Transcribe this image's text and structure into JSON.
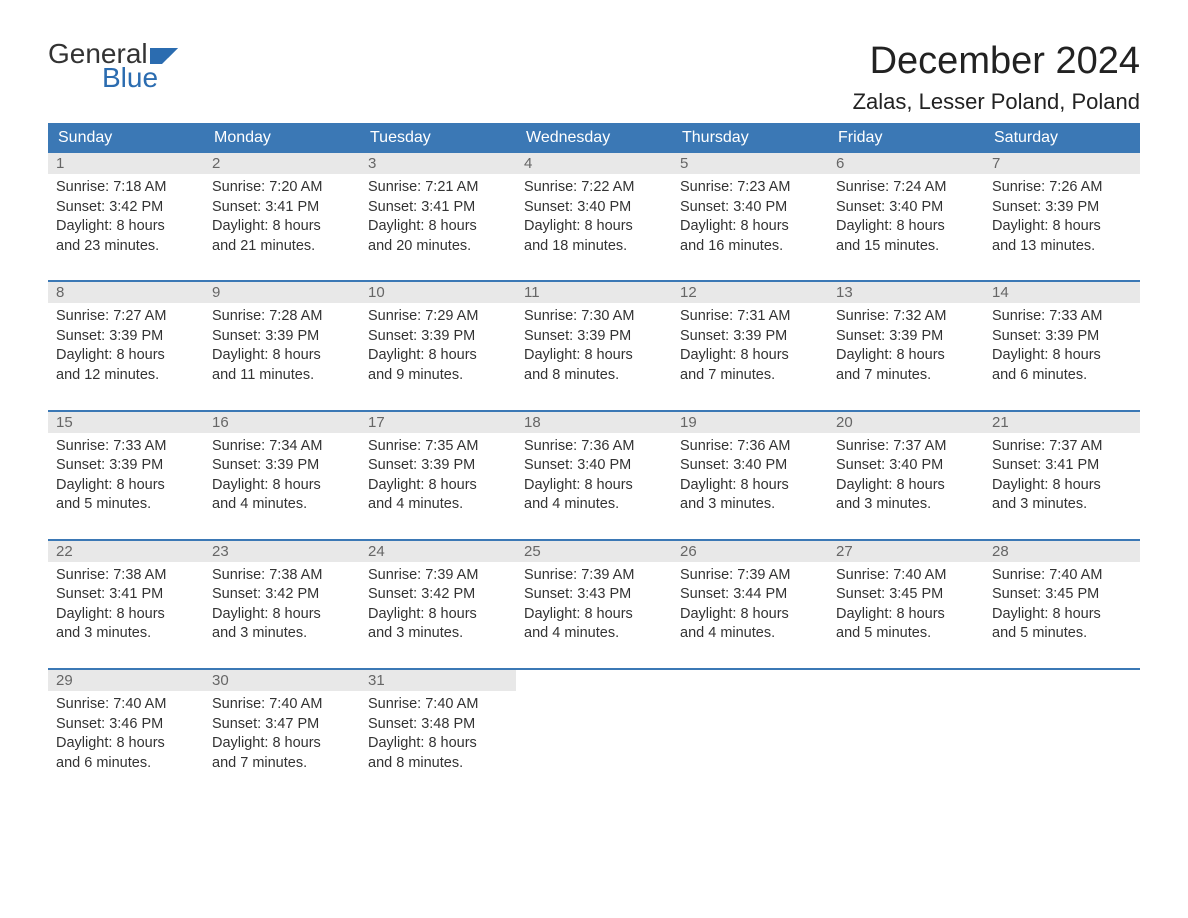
{
  "logo": {
    "word1": "General",
    "word2": "Blue",
    "brand_color": "#2b6cb0"
  },
  "title": "December 2024",
  "location": "Zalas, Lesser Poland, Poland",
  "colors": {
    "header_bg": "#3b78b5",
    "header_text": "#ffffff",
    "daynum_bg": "#e8e8e8",
    "daynum_text": "#666666",
    "body_text": "#333333",
    "rule": "#3b78b5",
    "page_bg": "#ffffff"
  },
  "day_headers": [
    "Sunday",
    "Monday",
    "Tuesday",
    "Wednesday",
    "Thursday",
    "Friday",
    "Saturday"
  ],
  "weeks": [
    [
      {
        "n": "1",
        "sunrise": "Sunrise: 7:18 AM",
        "sunset": "Sunset: 3:42 PM",
        "d1": "Daylight: 8 hours",
        "d2": "and 23 minutes."
      },
      {
        "n": "2",
        "sunrise": "Sunrise: 7:20 AM",
        "sunset": "Sunset: 3:41 PM",
        "d1": "Daylight: 8 hours",
        "d2": "and 21 minutes."
      },
      {
        "n": "3",
        "sunrise": "Sunrise: 7:21 AM",
        "sunset": "Sunset: 3:41 PM",
        "d1": "Daylight: 8 hours",
        "d2": "and 20 minutes."
      },
      {
        "n": "4",
        "sunrise": "Sunrise: 7:22 AM",
        "sunset": "Sunset: 3:40 PM",
        "d1": "Daylight: 8 hours",
        "d2": "and 18 minutes."
      },
      {
        "n": "5",
        "sunrise": "Sunrise: 7:23 AM",
        "sunset": "Sunset: 3:40 PM",
        "d1": "Daylight: 8 hours",
        "d2": "and 16 minutes."
      },
      {
        "n": "6",
        "sunrise": "Sunrise: 7:24 AM",
        "sunset": "Sunset: 3:40 PM",
        "d1": "Daylight: 8 hours",
        "d2": "and 15 minutes."
      },
      {
        "n": "7",
        "sunrise": "Sunrise: 7:26 AM",
        "sunset": "Sunset: 3:39 PM",
        "d1": "Daylight: 8 hours",
        "d2": "and 13 minutes."
      }
    ],
    [
      {
        "n": "8",
        "sunrise": "Sunrise: 7:27 AM",
        "sunset": "Sunset: 3:39 PM",
        "d1": "Daylight: 8 hours",
        "d2": "and 12 minutes."
      },
      {
        "n": "9",
        "sunrise": "Sunrise: 7:28 AM",
        "sunset": "Sunset: 3:39 PM",
        "d1": "Daylight: 8 hours",
        "d2": "and 11 minutes."
      },
      {
        "n": "10",
        "sunrise": "Sunrise: 7:29 AM",
        "sunset": "Sunset: 3:39 PM",
        "d1": "Daylight: 8 hours",
        "d2": "and 9 minutes."
      },
      {
        "n": "11",
        "sunrise": "Sunrise: 7:30 AM",
        "sunset": "Sunset: 3:39 PM",
        "d1": "Daylight: 8 hours",
        "d2": "and 8 minutes."
      },
      {
        "n": "12",
        "sunrise": "Sunrise: 7:31 AM",
        "sunset": "Sunset: 3:39 PM",
        "d1": "Daylight: 8 hours",
        "d2": "and 7 minutes."
      },
      {
        "n": "13",
        "sunrise": "Sunrise: 7:32 AM",
        "sunset": "Sunset: 3:39 PM",
        "d1": "Daylight: 8 hours",
        "d2": "and 7 minutes."
      },
      {
        "n": "14",
        "sunrise": "Sunrise: 7:33 AM",
        "sunset": "Sunset: 3:39 PM",
        "d1": "Daylight: 8 hours",
        "d2": "and 6 minutes."
      }
    ],
    [
      {
        "n": "15",
        "sunrise": "Sunrise: 7:33 AM",
        "sunset": "Sunset: 3:39 PM",
        "d1": "Daylight: 8 hours",
        "d2": "and 5 minutes."
      },
      {
        "n": "16",
        "sunrise": "Sunrise: 7:34 AM",
        "sunset": "Sunset: 3:39 PM",
        "d1": "Daylight: 8 hours",
        "d2": "and 4 minutes."
      },
      {
        "n": "17",
        "sunrise": "Sunrise: 7:35 AM",
        "sunset": "Sunset: 3:39 PM",
        "d1": "Daylight: 8 hours",
        "d2": "and 4 minutes."
      },
      {
        "n": "18",
        "sunrise": "Sunrise: 7:36 AM",
        "sunset": "Sunset: 3:40 PM",
        "d1": "Daylight: 8 hours",
        "d2": "and 4 minutes."
      },
      {
        "n": "19",
        "sunrise": "Sunrise: 7:36 AM",
        "sunset": "Sunset: 3:40 PM",
        "d1": "Daylight: 8 hours",
        "d2": "and 3 minutes."
      },
      {
        "n": "20",
        "sunrise": "Sunrise: 7:37 AM",
        "sunset": "Sunset: 3:40 PM",
        "d1": "Daylight: 8 hours",
        "d2": "and 3 minutes."
      },
      {
        "n": "21",
        "sunrise": "Sunrise: 7:37 AM",
        "sunset": "Sunset: 3:41 PM",
        "d1": "Daylight: 8 hours",
        "d2": "and 3 minutes."
      }
    ],
    [
      {
        "n": "22",
        "sunrise": "Sunrise: 7:38 AM",
        "sunset": "Sunset: 3:41 PM",
        "d1": "Daylight: 8 hours",
        "d2": "and 3 minutes."
      },
      {
        "n": "23",
        "sunrise": "Sunrise: 7:38 AM",
        "sunset": "Sunset: 3:42 PM",
        "d1": "Daylight: 8 hours",
        "d2": "and 3 minutes."
      },
      {
        "n": "24",
        "sunrise": "Sunrise: 7:39 AM",
        "sunset": "Sunset: 3:42 PM",
        "d1": "Daylight: 8 hours",
        "d2": "and 3 minutes."
      },
      {
        "n": "25",
        "sunrise": "Sunrise: 7:39 AM",
        "sunset": "Sunset: 3:43 PM",
        "d1": "Daylight: 8 hours",
        "d2": "and 4 minutes."
      },
      {
        "n": "26",
        "sunrise": "Sunrise: 7:39 AM",
        "sunset": "Sunset: 3:44 PM",
        "d1": "Daylight: 8 hours",
        "d2": "and 4 minutes."
      },
      {
        "n": "27",
        "sunrise": "Sunrise: 7:40 AM",
        "sunset": "Sunset: 3:45 PM",
        "d1": "Daylight: 8 hours",
        "d2": "and 5 minutes."
      },
      {
        "n": "28",
        "sunrise": "Sunrise: 7:40 AM",
        "sunset": "Sunset: 3:45 PM",
        "d1": "Daylight: 8 hours",
        "d2": "and 5 minutes."
      }
    ],
    [
      {
        "n": "29",
        "sunrise": "Sunrise: 7:40 AM",
        "sunset": "Sunset: 3:46 PM",
        "d1": "Daylight: 8 hours",
        "d2": "and 6 minutes."
      },
      {
        "n": "30",
        "sunrise": "Sunrise: 7:40 AM",
        "sunset": "Sunset: 3:47 PM",
        "d1": "Daylight: 8 hours",
        "d2": "and 7 minutes."
      },
      {
        "n": "31",
        "sunrise": "Sunrise: 7:40 AM",
        "sunset": "Sunset: 3:48 PM",
        "d1": "Daylight: 8 hours",
        "d2": "and 8 minutes."
      },
      null,
      null,
      null,
      null
    ]
  ]
}
